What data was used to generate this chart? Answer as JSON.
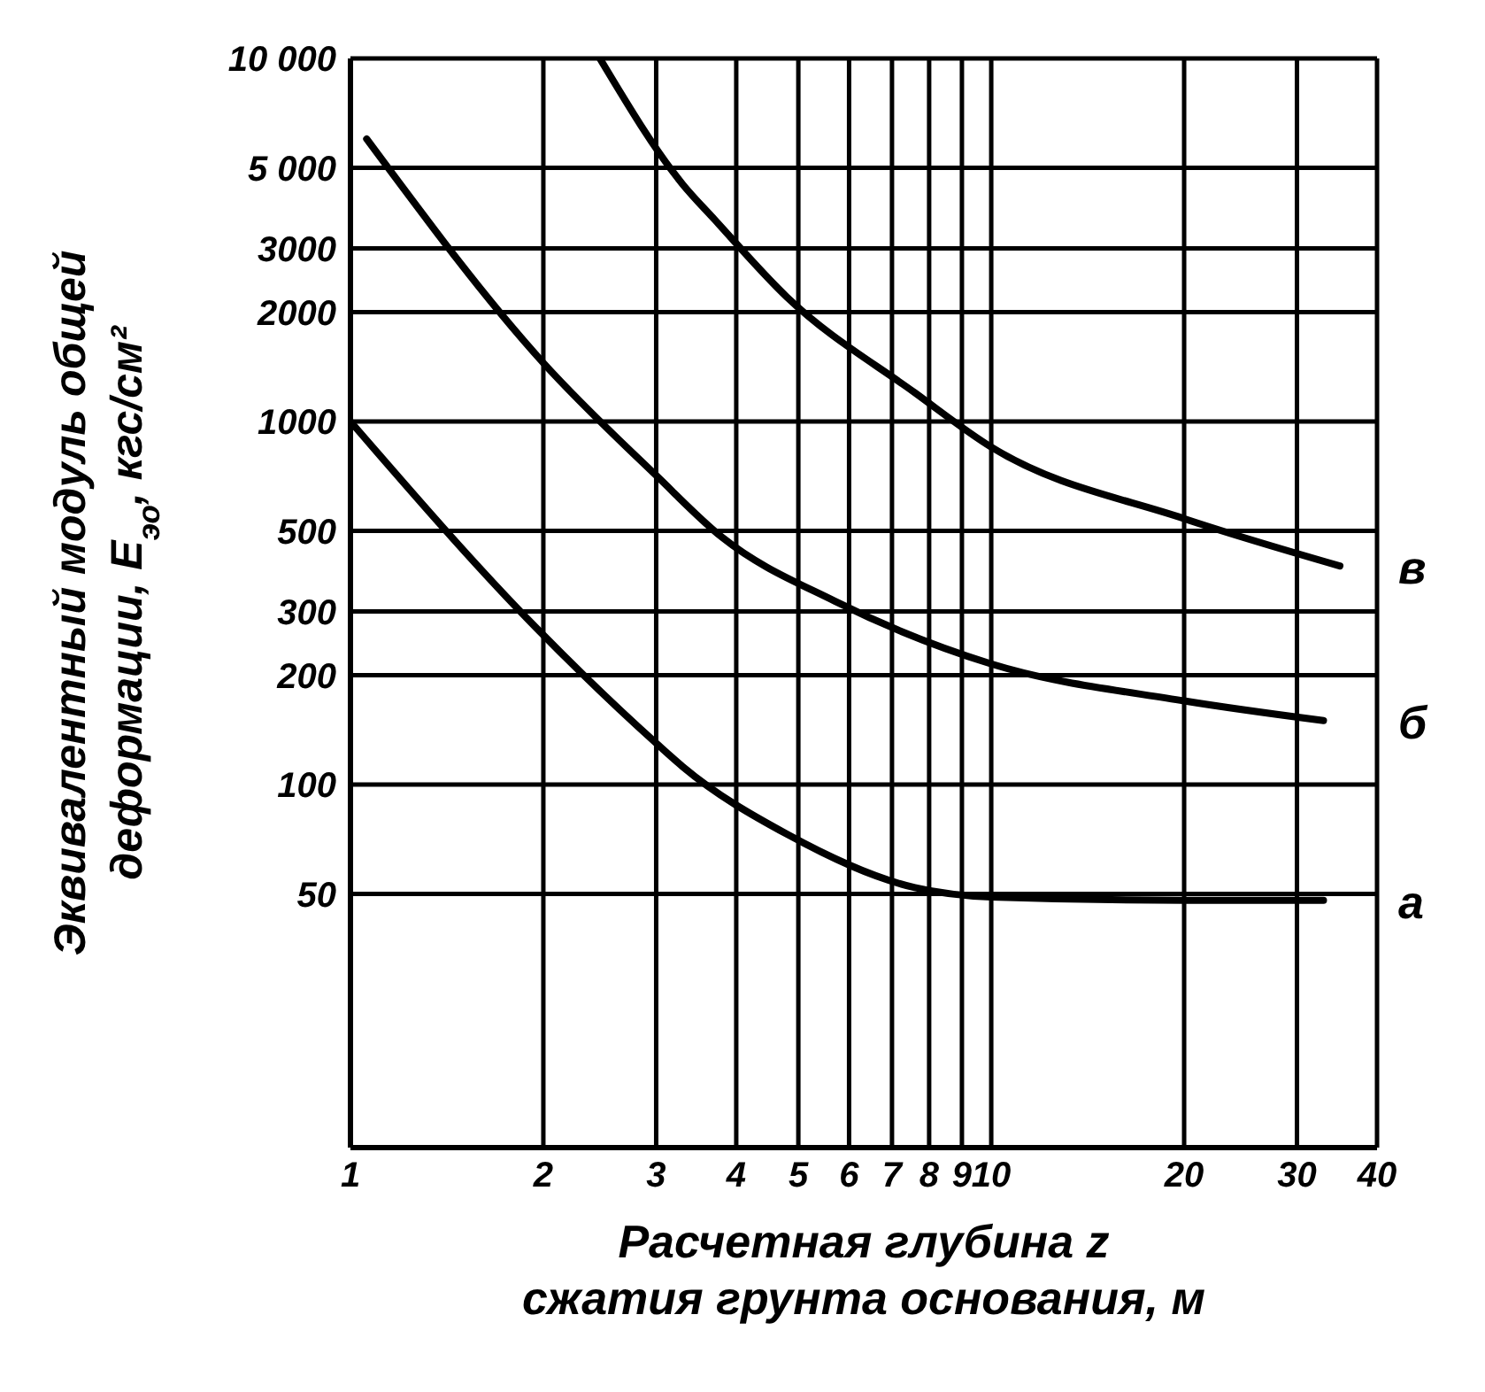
{
  "chart_data": {
    "type": "line",
    "xlabel": "Расчетная глубина z сжатия грунта основания, м",
    "ylabel": "Эквивалентный модуль общей деформации, E$_{эо}$, кгс/см²",
    "log": "xy",
    "grid": true,
    "marker": "none",
    "line_style": "solid",
    "xlim": [
      1,
      40
    ],
    "xticks": [
      1,
      2,
      3,
      4,
      5,
      6,
      7,
      8,
      9,
      10,
      20,
      30,
      40
    ],
    "ylim": [
      10,
      10000
    ],
    "yticks": [
      {
        "value": 10,
        "label": null
      },
      50,
      100,
      200,
      300,
      500,
      1000,
      2000,
      3000,
      {
        "value": 5000,
        "label": "5 000"
      },
      {
        "value": 10000,
        "label": "10 000"
      }
    ],
    "series": [
      {
        "name": "в",
        "color": "#000000",
        "x": [
          2.45,
          3.3,
          3.7,
          4.8,
          7.6,
          10,
          20,
          35
        ],
        "values": [
          10000,
          4500,
          3600,
          2200,
          1200,
          850,
          540,
          400
        ]
      },
      {
        "name": "б",
        "color": "#000000",
        "x": [
          1.06,
          2,
          3,
          3.8,
          5.7,
          10,
          20,
          33
        ],
        "values": [
          6000,
          1450,
          710,
          480,
          320,
          215,
          170,
          150
        ]
      },
      {
        "name": "а",
        "color": "#000000",
        "x": [
          1,
          1.95,
          3,
          3.3,
          4.8,
          7.6,
          10,
          20,
          33
        ],
        "values": [
          1000,
          270,
          130,
          112,
          73,
          52,
          49,
          48,
          48
        ]
      }
    ]
  }
}
